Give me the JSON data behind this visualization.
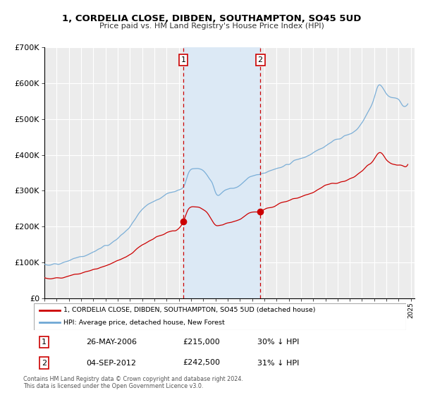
{
  "title": "1, CORDELIA CLOSE, DIBDEN, SOUTHAMPTON, SO45 5UD",
  "subtitle": "Price paid vs. HM Land Registry's House Price Index (HPI)",
  "legend_label_red": "1, CORDELIA CLOSE, DIBDEN, SOUTHAMPTON, SO45 5UD (detached house)",
  "legend_label_blue": "HPI: Average price, detached house, New Forest",
  "transaction1_label": "1",
  "transaction1_date": "26-MAY-2006",
  "transaction1_price": "£215,000",
  "transaction1_hpi": "30% ↓ HPI",
  "transaction1_year": 2006.38,
  "transaction1_value": 215000,
  "transaction2_label": "2",
  "transaction2_date": "04-SEP-2012",
  "transaction2_price": "£242,500",
  "transaction2_hpi": "31% ↓ HPI",
  "transaction2_year": 2012.67,
  "transaction2_value": 242500,
  "footer1": "Contains HM Land Registry data © Crown copyright and database right 2024.",
  "footer2": "This data is licensed under the Open Government Licence v3.0.",
  "plot_bg": "#ececec",
  "grid_color": "#ffffff",
  "red_color": "#cc0000",
  "blue_color": "#6fa8d5",
  "shade_color": "#dce9f5",
  "ylim": [
    0,
    700000
  ],
  "xlim_start": 1995.0,
  "xlim_end": 2025.3
}
